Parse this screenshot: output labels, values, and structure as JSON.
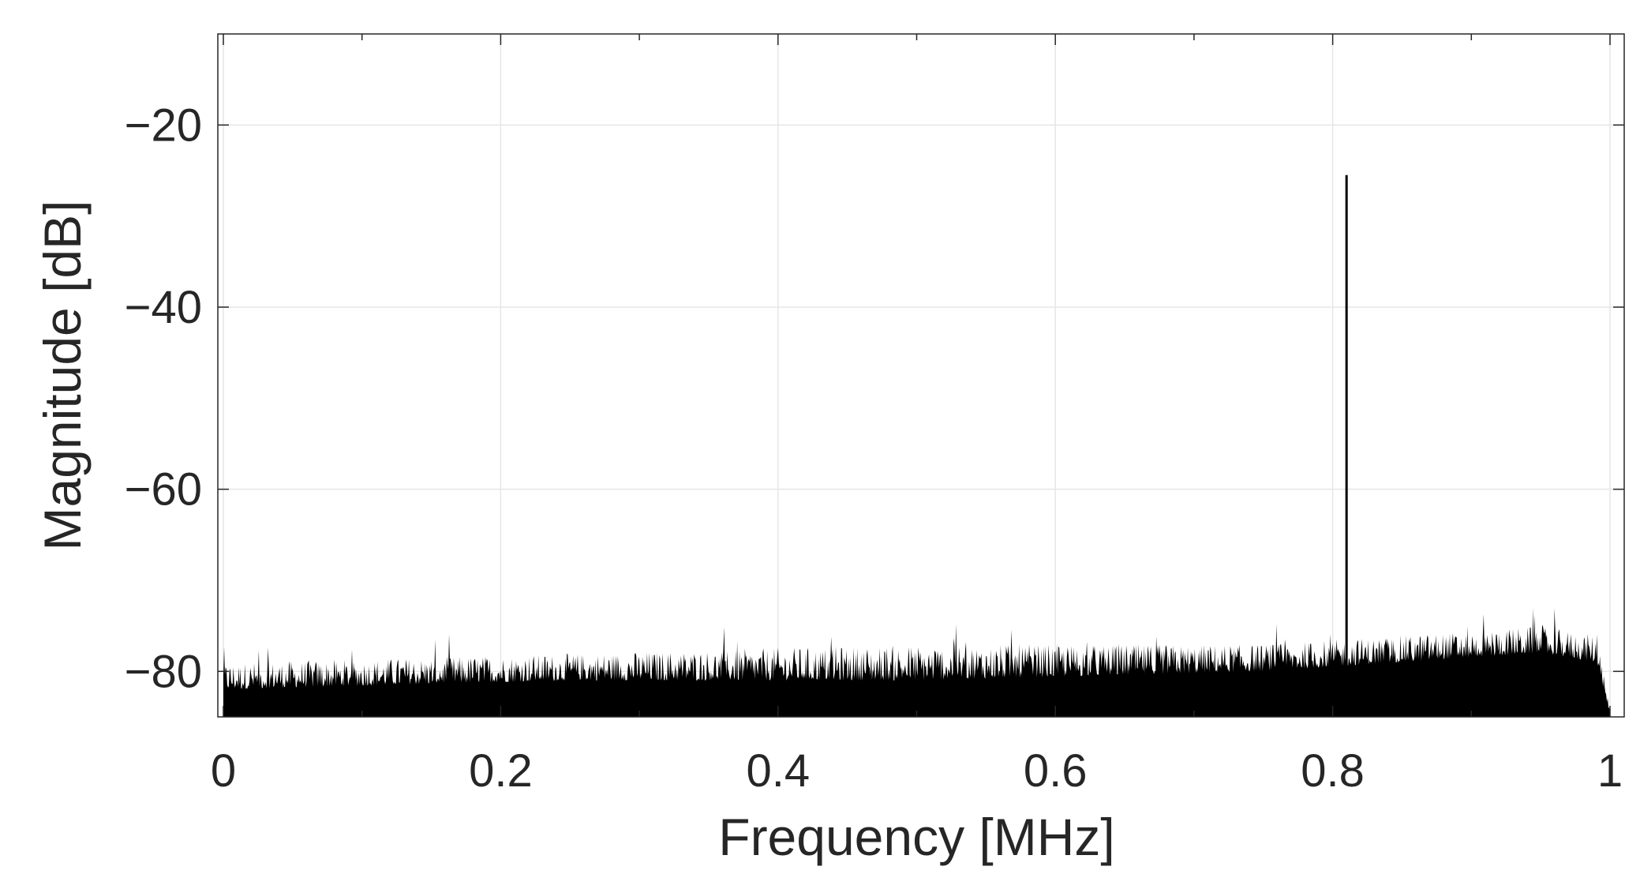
{
  "chart_data": {
    "type": "line",
    "title": "",
    "xlabel": "Frequency [MHz]",
    "ylabel": "Magnitude [dB]",
    "xlim": [
      0,
      1
    ],
    "ylim": [
      -85,
      -10
    ],
    "x_ticks": [
      0,
      0.2,
      0.4,
      0.6,
      0.8,
      1
    ],
    "x_tick_labels": [
      "0",
      "0.2",
      "0.4",
      "0.6",
      "0.8",
      "1"
    ],
    "y_ticks": [
      -80,
      -60,
      -40,
      -20
    ],
    "y_tick_labels": [
      "−80",
      "−60",
      "−40",
      "−20"
    ],
    "grid": true,
    "legend": "none",
    "series": [
      {
        "color": "#000000",
        "noise_floor_db": [
          {
            "x": 0.0,
            "y": -82
          },
          {
            "x": 0.25,
            "y": -81
          },
          {
            "x": 0.5,
            "y": -81
          },
          {
            "x": 0.75,
            "y": -80
          },
          {
            "x": 0.95,
            "y": -78
          },
          {
            "x": 0.99,
            "y": -79
          },
          {
            "x": 1.0,
            "y": -85
          }
        ],
        "noise_peak_db": [
          {
            "x": 0.0,
            "y": -79
          },
          {
            "x": 0.25,
            "y": -78
          },
          {
            "x": 0.5,
            "y": -77
          },
          {
            "x": 0.75,
            "y": -77
          },
          {
            "x": 0.95,
            "y": -75
          },
          {
            "x": 0.99,
            "y": -76
          },
          {
            "x": 1.0,
            "y": -84
          }
        ],
        "spike": {
          "x": 0.81,
          "y": -25.5
        }
      }
    ]
  }
}
